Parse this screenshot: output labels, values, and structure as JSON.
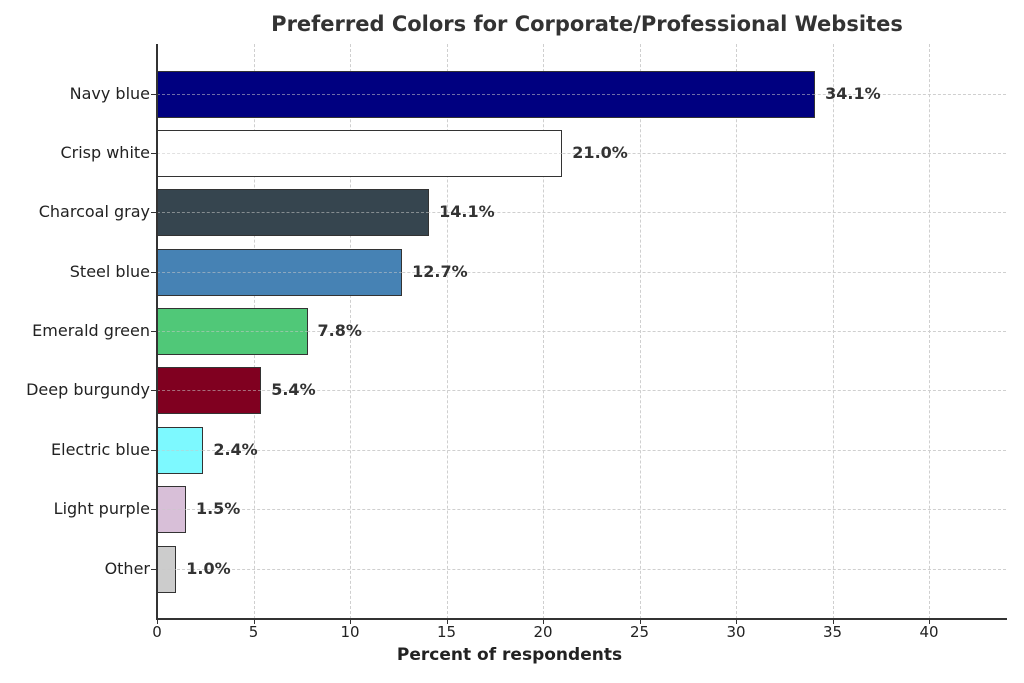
{
  "chart_data": {
    "type": "bar",
    "orientation": "horizontal",
    "title": "Preferred Colors for Corporate/Professional Websites",
    "xlabel": "Percent of respondents",
    "ylabel": "",
    "xlim": [
      0,
      44
    ],
    "xticks": [
      0,
      5,
      10,
      15,
      20,
      25,
      30,
      35,
      40
    ],
    "grid": true,
    "legend": null,
    "categories": [
      "Navy blue",
      "Crisp white",
      "Charcoal gray",
      "Steel blue",
      "Emerald green",
      "Deep burgundy",
      "Electric blue",
      "Light purple",
      "Other"
    ],
    "values": [
      34.1,
      21.0,
      14.1,
      12.7,
      7.8,
      5.4,
      2.4,
      1.5,
      1.0
    ],
    "value_labels": [
      "34.1%",
      "21.0%",
      "14.1%",
      "12.7%",
      "7.8%",
      "5.4%",
      "2.4%",
      "1.5%",
      "1.0%"
    ],
    "colors": [
      "#000080",
      "#ffffff",
      "#36454f",
      "#4682b4",
      "#50c878",
      "#800020",
      "#7df9ff",
      "#d8bfd8",
      "#cccccc"
    ]
  },
  "labels": {
    "title": "Preferred Colors for Corporate/Professional Websites",
    "xlabel": "Percent of respondents",
    "xticks": [
      "0",
      "5",
      "10",
      "15",
      "20",
      "25",
      "30",
      "35",
      "40"
    ],
    "bars": [
      {
        "name": "Navy blue",
        "value": "34.1%"
      },
      {
        "name": "Crisp white",
        "value": "21.0%"
      },
      {
        "name": "Charcoal gray",
        "value": "14.1%"
      },
      {
        "name": "Steel blue",
        "value": "12.7%"
      },
      {
        "name": "Emerald green",
        "value": "7.8%"
      },
      {
        "name": "Deep burgundy",
        "value": "5.4%"
      },
      {
        "name": "Electric blue",
        "value": "2.4%"
      },
      {
        "name": "Light purple",
        "value": "1.5%"
      },
      {
        "name": "Other",
        "value": "1.0%"
      }
    ]
  }
}
